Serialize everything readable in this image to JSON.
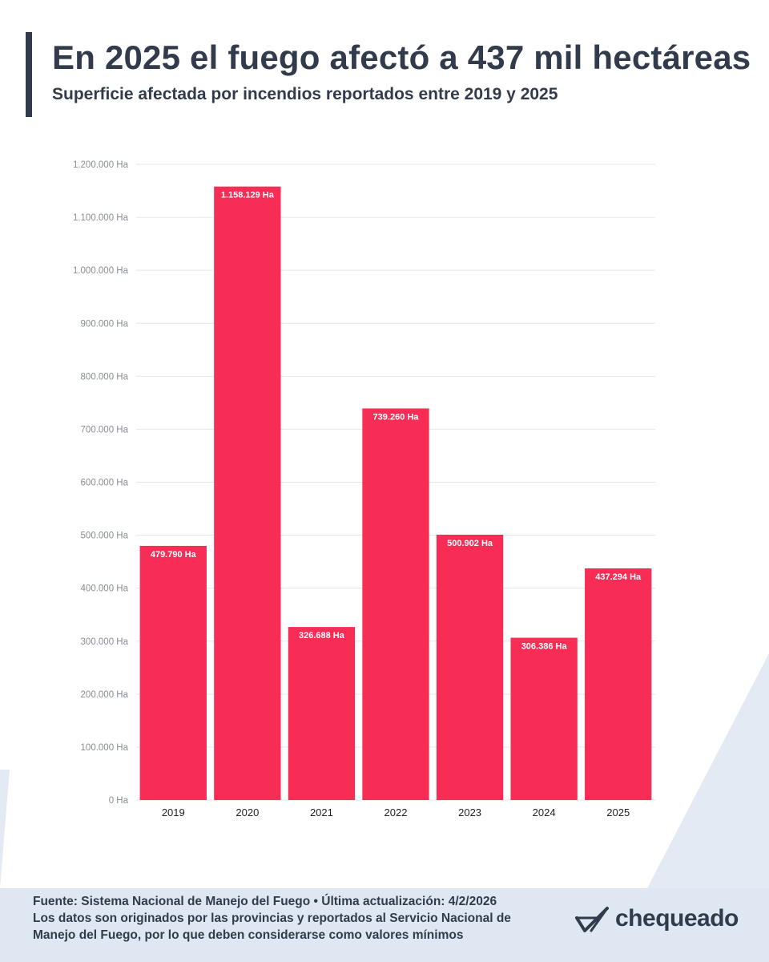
{
  "header": {
    "title": "En 2025 el fuego afectó a 437 mil hectáreas",
    "subtitle": "Superficie afectada por incendios reportados entre 2019 y 2025"
  },
  "chart_data": {
    "type": "bar",
    "categories": [
      "2019",
      "2020",
      "2021",
      "2022",
      "2023",
      "2024",
      "2025"
    ],
    "values": [
      479790,
      1158129,
      326688,
      739260,
      500902,
      306386,
      437294
    ],
    "value_labels": [
      "479.790 Ha",
      "1.158.129 Ha",
      "326.688 Ha",
      "739.260 Ha",
      "500.902 Ha",
      "306.386 Ha",
      "437.294 Ha"
    ],
    "ylim": [
      0,
      1200000
    ],
    "yticks": [
      0,
      100000,
      200000,
      300000,
      400000,
      500000,
      600000,
      700000,
      800000,
      900000,
      1000000,
      1100000,
      1200000
    ],
    "ytick_labels": [
      "0 Ha",
      "100.000 Ha",
      "200.000 Ha",
      "300.000 Ha",
      "400.000 Ha",
      "500.000 Ha",
      "600.000 Ha",
      "700.000 Ha",
      "800.000 Ha",
      "900.000 Ha",
      "1.000.000 Ha",
      "1.100.000 Ha",
      "1.200.000 Ha"
    ],
    "grid": true,
    "bar_color": "#f72d55"
  },
  "footer": {
    "source": "Fuente: Sistema Nacional de Manejo del Fuego • Última actualización: 4/2/2026",
    "note_line1": "Los datos son originados por las provincias y reportados al Servicio Nacional de",
    "note_line2": "Manejo del Fuego, por lo que deben considerarse como valores mínimos",
    "logo_text": "chequeado",
    "logo_icon": "check-mark-icon"
  },
  "colors": {
    "text": "#323b4c",
    "footer_bg": "#dfe7f3",
    "deco": "#e3eaf4",
    "bar": "#f72d55"
  }
}
